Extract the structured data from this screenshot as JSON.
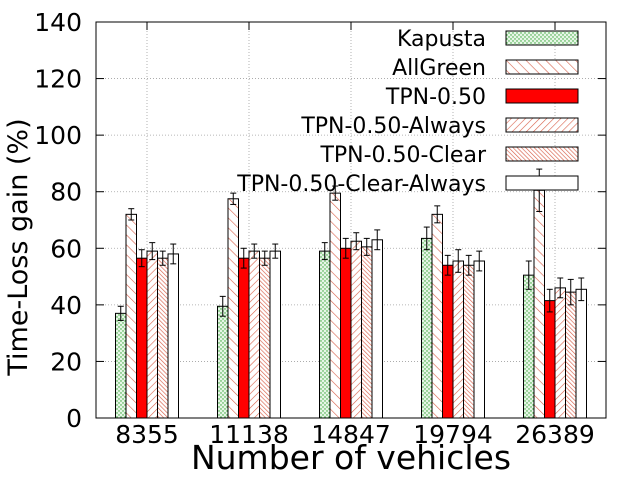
{
  "chart_data": {
    "type": "bar",
    "xlabel": "Number of vehicles",
    "ylabel": "Time-Loss gain (%)",
    "ylim": [
      0,
      140
    ],
    "yticks": [
      0,
      20,
      40,
      60,
      80,
      100,
      120,
      140
    ],
    "grid": true,
    "legend_position": "top-right",
    "categories": [
      "8355",
      "11138",
      "14847",
      "19794",
      "26389"
    ],
    "series": [
      {
        "name": "Kapusta",
        "values": [
          37,
          39.5,
          59,
          63.5,
          50.5
        ],
        "errors": [
          2.5,
          3.5,
          3,
          4,
          5
        ],
        "pattern": "green-dots"
      },
      {
        "name": "AllGreen",
        "values": [
          72,
          77.5,
          79.5,
          72,
          80.5
        ],
        "errors": [
          2,
          2,
          2.5,
          3,
          7.5
        ],
        "pattern": "red-hatch-sparse"
      },
      {
        "name": "TPN-0.50",
        "values": [
          56.5,
          56.5,
          60,
          54,
          41.5
        ],
        "errors": [
          3,
          3.5,
          3.5,
          3.5,
          4
        ],
        "pattern": "solid-red"
      },
      {
        "name": "TPN-0.50-Always",
        "values": [
          59,
          59,
          62.5,
          55.5,
          46
        ],
        "errors": [
          3,
          2.5,
          3,
          4,
          3.5
        ],
        "pattern": "red-hatch-medium"
      },
      {
        "name": "TPN-0.50-Clear",
        "values": [
          56.5,
          56.5,
          60.5,
          54,
          44.5
        ],
        "errors": [
          2.5,
          2.5,
          3,
          3.5,
          4.5
        ],
        "pattern": "red-hatch-dense"
      },
      {
        "name": "TPN-0.50-Clear-Always",
        "values": [
          58,
          59,
          63,
          55.5,
          45.5
        ],
        "errors": [
          3.5,
          2.5,
          3.5,
          3.5,
          4
        ],
        "pattern": "white"
      }
    ]
  },
  "colors": {
    "green": "#2ea02e",
    "red": "#ff0000",
    "hatch": "#d8604a",
    "grid": "#a0a0a0"
  }
}
